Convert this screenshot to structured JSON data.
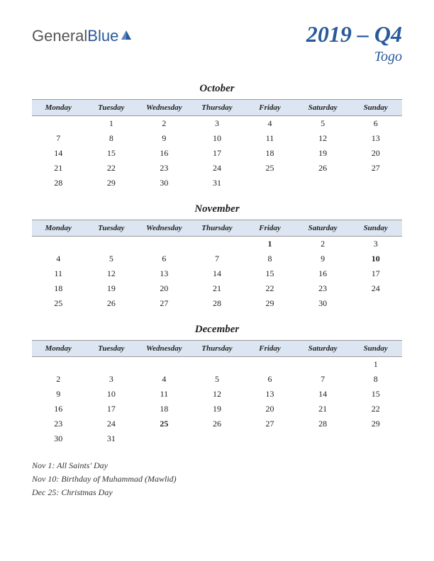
{
  "logo": {
    "part1": "General",
    "part2": "Blue"
  },
  "title": "2019 – Q4",
  "country": "Togo",
  "day_headers": [
    "Monday",
    "Tuesday",
    "Wednesday",
    "Thursday",
    "Friday",
    "Saturday",
    "Sunday"
  ],
  "months": [
    {
      "name": "October",
      "weeks": [
        [
          "",
          "1",
          "2",
          "3",
          "4",
          "5",
          "6"
        ],
        [
          "7",
          "8",
          "9",
          "10",
          "11",
          "12",
          "13"
        ],
        [
          "14",
          "15",
          "16",
          "17",
          "18",
          "19",
          "20"
        ],
        [
          "21",
          "22",
          "23",
          "24",
          "25",
          "26",
          "27"
        ],
        [
          "28",
          "29",
          "30",
          "31",
          "",
          "",
          ""
        ]
      ],
      "holidays": []
    },
    {
      "name": "November",
      "weeks": [
        [
          "",
          "",
          "",
          "",
          "1",
          "2",
          "3"
        ],
        [
          "4",
          "5",
          "6",
          "7",
          "8",
          "9",
          "10"
        ],
        [
          "11",
          "12",
          "13",
          "14",
          "15",
          "16",
          "17"
        ],
        [
          "18",
          "19",
          "20",
          "21",
          "22",
          "23",
          "24"
        ],
        [
          "25",
          "26",
          "27",
          "28",
          "29",
          "30",
          ""
        ]
      ],
      "holidays": [
        "1",
        "10"
      ]
    },
    {
      "name": "December",
      "weeks": [
        [
          "",
          "",
          "",
          "",
          "",
          "",
          "1"
        ],
        [
          "2",
          "3",
          "4",
          "5",
          "6",
          "7",
          "8"
        ],
        [
          "9",
          "10",
          "11",
          "12",
          "13",
          "14",
          "15"
        ],
        [
          "16",
          "17",
          "18",
          "19",
          "20",
          "21",
          "22"
        ],
        [
          "23",
          "24",
          "25",
          "26",
          "27",
          "28",
          "29"
        ],
        [
          "30",
          "31",
          "",
          "",
          "",
          "",
          ""
        ]
      ],
      "holidays": [
        "25"
      ]
    }
  ],
  "holiday_notes": [
    "Nov 1: All Saints' Day",
    "Nov 10: Birthday of Muhammad (Mawlid)",
    "Dec 25: Christmas Day"
  ],
  "colors": {
    "header_bg": "#dce6f2",
    "title_color": "#2a5a9a",
    "holiday_color": "#c00000"
  }
}
